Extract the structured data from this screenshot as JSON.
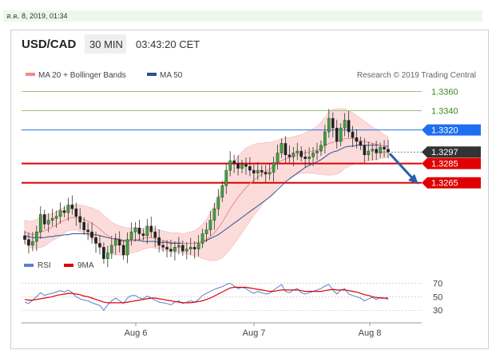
{
  "timestamp": "ส.ค. 8, 2019, 01:34",
  "header": {
    "pair": "USD/CAD",
    "timeframe": "30 MIN",
    "time": "03:43:20 CET"
  },
  "legend": {
    "ma_bb": {
      "label": "MA 20 + Bollinger Bands",
      "color": "#f08a8a"
    },
    "ma50": {
      "label": "MA 50",
      "color": "#2f4f8f"
    }
  },
  "credit": "Research © 2019 Trading Central",
  "chart_data": {
    "type": "candlestick",
    "x_labels": [
      "Aug 6",
      "Aug 7",
      "Aug 8"
    ],
    "ylim": [
      1.3185,
      1.3372
    ],
    "price_labels": [
      {
        "value": 1.336,
        "text": "1.3360",
        "style": "green"
      },
      {
        "value": 1.334,
        "text": "1.3340",
        "style": "green"
      },
      {
        "value": 1.332,
        "text": "1.3320",
        "style": "blue"
      },
      {
        "value": 1.3297,
        "text": "1.3297",
        "style": "current"
      },
      {
        "value": 1.3285,
        "text": "1.3285",
        "style": "red"
      },
      {
        "value": 1.3265,
        "text": "1.3265",
        "style": "red"
      }
    ],
    "closes": [
      1.3206,
      1.32,
      1.3204,
      1.3214,
      1.3232,
      1.3222,
      1.3226,
      1.3228,
      1.323,
      1.3236,
      1.3234,
      1.3242,
      1.3238,
      1.323,
      1.3224,
      1.3216,
      1.3214,
      1.3208,
      1.3202,
      1.3198,
      1.3186,
      1.3192,
      1.32,
      1.3206,
      1.32,
      1.319,
      1.3206,
      1.3214,
      1.3218,
      1.3212,
      1.321,
      1.322,
      1.3214,
      1.3208,
      1.32,
      1.3198,
      1.3196,
      1.3194,
      1.3198,
      1.32,
      1.3194,
      1.3196,
      1.3198,
      1.3196,
      1.3202,
      1.3212,
      1.3216,
      1.3226,
      1.3238,
      1.325,
      1.3262,
      1.3278,
      1.3288,
      1.3285,
      1.328,
      1.3284,
      1.3282,
      1.3278,
      1.3275,
      1.3278,
      1.3276,
      1.3274,
      1.3276,
      1.3286,
      1.3296,
      1.3306,
      1.3294,
      1.3292,
      1.3296,
      1.3298,
      1.3292,
      1.329,
      1.3292,
      1.3296,
      1.3298,
      1.3304,
      1.3318,
      1.3332,
      1.3322,
      1.3308,
      1.3322,
      1.333,
      1.3318,
      1.3312,
      1.3308,
      1.3304,
      1.3294,
      1.3298,
      1.33,
      1.3296,
      1.3302,
      1.33,
      1.3297
    ],
    "ma20": [
      1.3214,
      1.3212,
      1.3211,
      1.3212,
      1.3214,
      1.3215,
      1.3217,
      1.3219,
      1.3221,
      1.3224,
      1.3226,
      1.3228,
      1.3229,
      1.3229,
      1.3228,
      1.3227,
      1.3225,
      1.3223,
      1.322,
      1.3217,
      1.3213,
      1.321,
      1.3207,
      1.3206,
      1.3205,
      1.3204,
      1.3204,
      1.3205,
      1.3206,
      1.3206,
      1.3207,
      1.3208,
      1.3208,
      1.3207,
      1.3206,
      1.3205,
      1.3204,
      1.3203,
      1.3203,
      1.3203,
      1.3202,
      1.3202,
      1.3202,
      1.3202,
      1.3203,
      1.3204,
      1.3206,
      1.3209,
      1.3213,
      1.3218,
      1.3224,
      1.3231,
      1.3238,
      1.3244,
      1.325,
      1.3255,
      1.326,
      1.3264,
      1.3268,
      1.3271,
      1.3274,
      1.3277,
      1.3279,
      1.3282,
      1.3285,
      1.3288,
      1.329,
      1.3291,
      1.3293,
      1.3294,
      1.3295,
      1.3296,
      1.3297,
      1.3298,
      1.3299,
      1.3301,
      1.3303,
      1.3306,
      1.3307,
      1.3308,
      1.3309,
      1.3311,
      1.3311,
      1.3311,
      1.331,
      1.3309,
      1.3308,
      1.3307,
      1.3306,
      1.3305,
      1.3304,
      1.3303,
      1.3302
    ],
    "ma50": [
      1.321,
      1.3209,
      1.3208,
      1.3208,
      1.3208,
      1.3208,
      1.3209,
      1.3209,
      1.321,
      1.321,
      1.3211,
      1.3211,
      1.3212,
      1.3212,
      1.3212,
      1.3212,
      1.3212,
      1.3211,
      1.3211,
      1.321,
      1.3209,
      1.3208,
      1.3207,
      1.3207,
      1.3206,
      1.3205,
      1.3205,
      1.3205,
      1.3205,
      1.3205,
      1.3204,
      1.3204,
      1.3204,
      1.3204,
      1.3203,
      1.3203,
      1.3203,
      1.3202,
      1.3202,
      1.3202,
      1.3202,
      1.3202,
      1.3202,
      1.3202,
      1.3203,
      1.3204,
      1.3205,
      1.3207,
      1.3209,
      1.3211,
      1.3214,
      1.3217,
      1.322,
      1.3223,
      1.3226,
      1.3229,
      1.3232,
      1.3235,
      1.3238,
      1.3241,
      1.3244,
      1.3247,
      1.325,
      1.3254,
      1.3258,
      1.3262,
      1.3266,
      1.3269,
      1.3272,
      1.3275,
      1.3278,
      1.3281,
      1.3283,
      1.3285,
      1.3287,
      1.3289,
      1.3292,
      1.3295,
      1.3297,
      1.3298,
      1.33,
      1.3302,
      1.3303,
      1.3303,
      1.3304,
      1.3304,
      1.3304,
      1.3304,
      1.3304,
      1.3304,
      1.3304,
      1.3303,
      1.3303
    ],
    "bb_width": [
      0.0012,
      0.0013,
      0.0014,
      0.0015,
      0.0016,
      0.0016,
      0.0015,
      0.0014,
      0.0014,
      0.0014,
      0.0013,
      0.0013,
      0.0013,
      0.0013,
      0.0014,
      0.0014,
      0.0015,
      0.0016,
      0.0017,
      0.0018,
      0.0018,
      0.0018,
      0.0017,
      0.0016,
      0.0015,
      0.0015,
      0.0014,
      0.0013,
      0.0013,
      0.0012,
      0.0011,
      0.0011,
      0.001,
      0.001,
      0.001,
      0.001,
      0.001,
      0.001,
      0.001,
      0.001,
      0.001,
      0.0011,
      0.0012,
      0.0013,
      0.0015,
      0.0018,
      0.0021,
      0.0025,
      0.0029,
      0.0033,
      0.0037,
      0.004,
      0.0042,
      0.0043,
      0.0043,
      0.0042,
      0.0041,
      0.0039,
      0.0037,
      0.0035,
      0.0032,
      0.003,
      0.0028,
      0.0026,
      0.0024,
      0.0023,
      0.0022,
      0.0021,
      0.002,
      0.002,
      0.002,
      0.0021,
      0.0022,
      0.0023,
      0.0025,
      0.0027,
      0.003,
      0.0033,
      0.0034,
      0.0034,
      0.0033,
      0.0031,
      0.0029,
      0.0027,
      0.0025,
      0.0023,
      0.0021,
      0.0019,
      0.0017,
      0.0016,
      0.0014,
      0.0012,
      0.0011
    ],
    "projection": {
      "from": 1.3297,
      "to": 1.3265
    },
    "rsi": {
      "legend": [
        {
          "label": "RSI",
          "color": "#5b7fcf"
        },
        {
          "label": "9MA",
          "color": "#dd0000"
        }
      ],
      "levels": [
        70,
        50,
        30
      ],
      "ylim": [
        22,
        80
      ],
      "rsi_values": [
        42,
        40,
        45,
        50,
        56,
        52,
        54,
        55,
        57,
        59,
        57,
        60,
        56,
        50,
        47,
        45,
        44,
        41,
        39,
        37,
        30,
        38,
        44,
        48,
        44,
        40,
        48,
        52,
        52,
        48,
        47,
        51,
        48,
        45,
        42,
        41,
        40,
        38,
        42,
        44,
        40,
        42,
        44,
        42,
        46,
        52,
        55,
        58,
        61,
        63,
        65,
        68,
        70,
        66,
        62,
        64,
        62,
        58,
        55,
        58,
        56,
        54,
        55,
        60,
        64,
        68,
        58,
        56,
        60,
        62,
        56,
        54,
        56,
        58,
        60,
        62,
        66,
        68,
        60,
        54,
        60,
        62,
        54,
        52,
        50,
        48,
        44,
        47,
        49,
        46,
        49,
        48,
        46
      ],
      "ma_values": [
        46,
        45,
        45,
        46,
        47,
        48,
        49,
        50,
        52,
        53,
        54,
        55,
        55,
        54,
        53,
        51,
        50,
        48,
        46,
        44,
        42,
        41,
        41,
        41,
        41,
        41,
        42,
        43,
        44,
        45,
        46,
        47,
        48,
        48,
        47,
        46,
        45,
        44,
        43,
        42,
        41,
        41,
        41,
        42,
        43,
        44,
        46,
        48,
        51,
        54,
        57,
        60,
        63,
        64,
        64,
        64,
        64,
        63,
        62,
        61,
        60,
        59,
        58,
        58,
        59,
        60,
        60,
        60,
        60,
        60,
        59,
        58,
        58,
        58,
        58,
        58,
        59,
        60,
        61,
        60,
        60,
        60,
        59,
        58,
        57,
        55,
        53,
        52,
        50,
        49,
        48,
        48,
        48
      ]
    }
  }
}
